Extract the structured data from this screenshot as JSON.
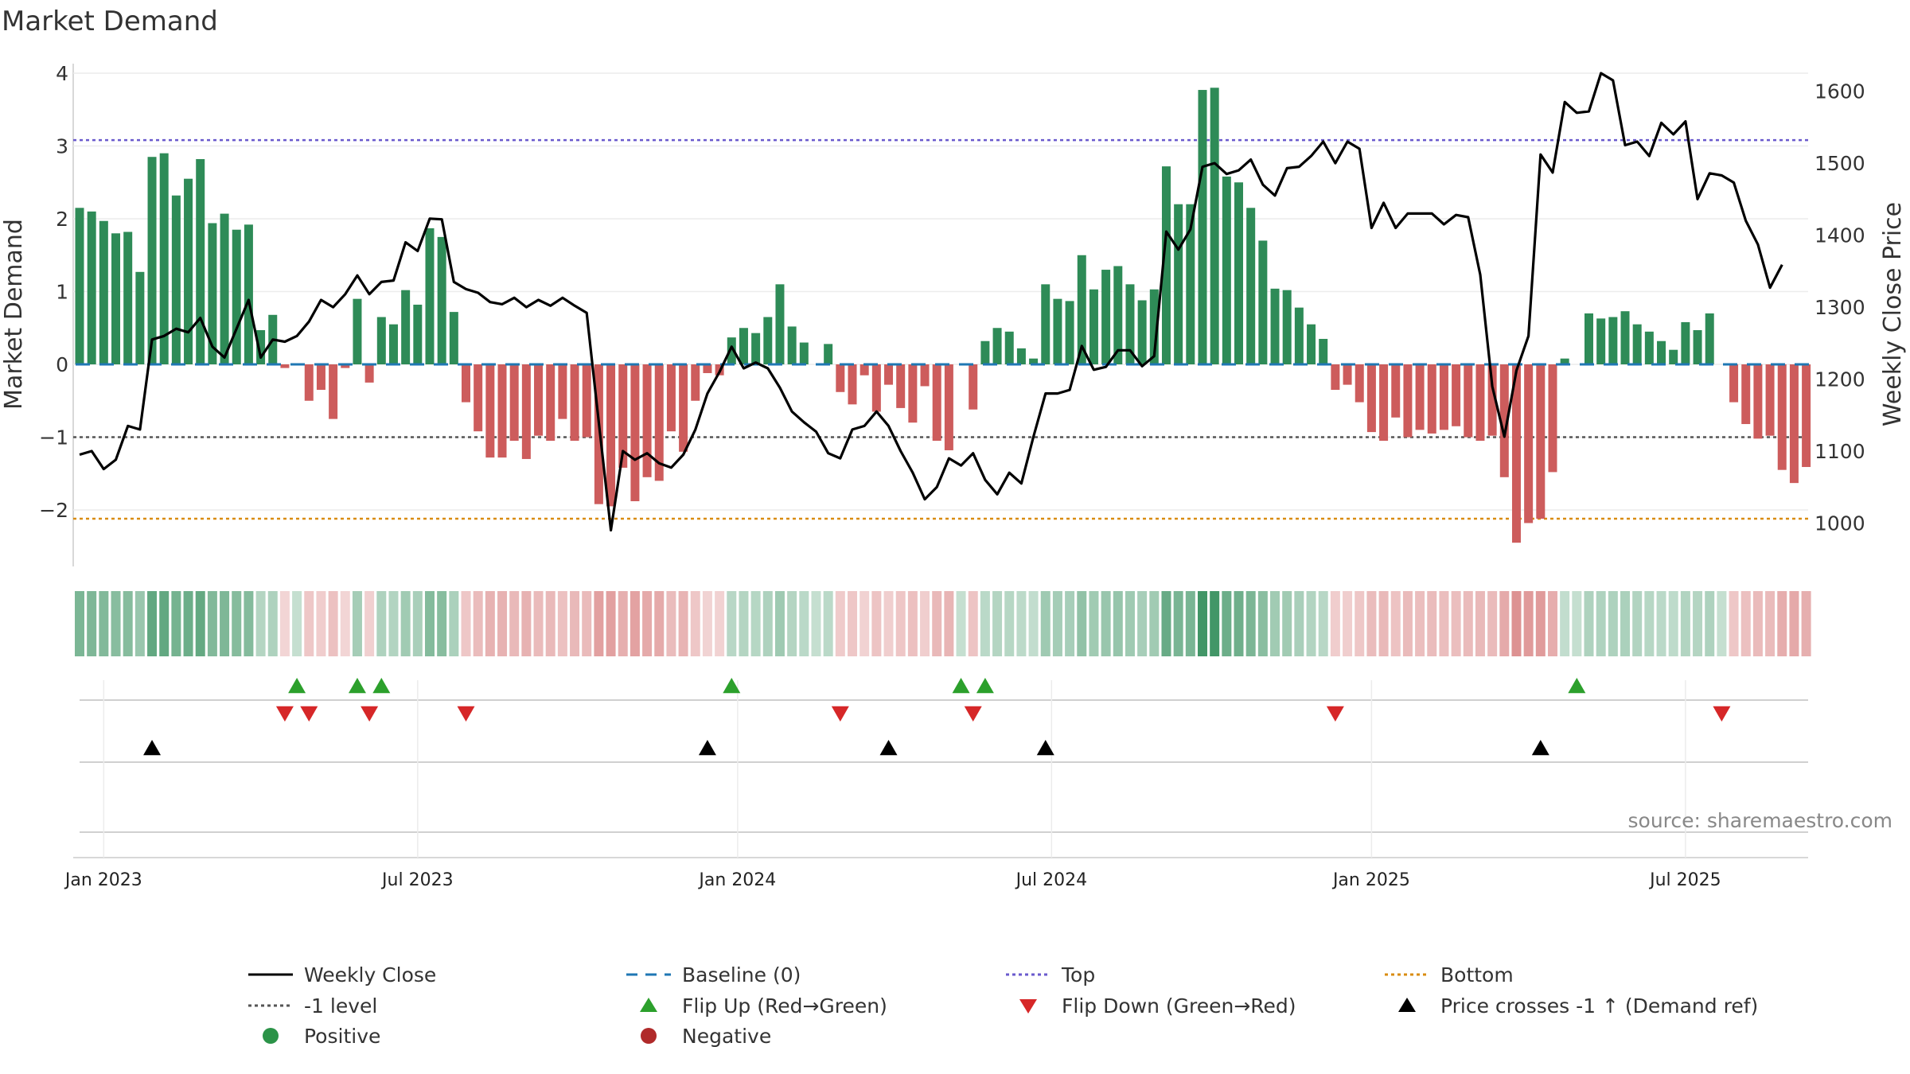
{
  "chart_data": {
    "type": "bar+line",
    "title": "Market Demand",
    "ylabel_left": "Market Demand",
    "ylabel_right": "Weekly Close Price",
    "ylim_left": [
      -2.7,
      4.2
    ],
    "ylim_right": [
      925,
      1642
    ],
    "left_ticks": [
      4,
      3,
      2,
      1,
      0,
      -1,
      -2
    ],
    "left_tick_labels": [
      "4",
      "3",
      "2",
      "1",
      "0",
      "−1",
      "−2"
    ],
    "right_ticks": [
      1600,
      1500,
      1400,
      1300,
      1200,
      1100,
      1000
    ],
    "right_tick_labels": [
      "1600",
      "1500",
      "1400",
      "1300",
      "1200",
      "1100",
      "1000"
    ],
    "x_ticks": [
      {
        "week": 2,
        "label": "Jan 2023"
      },
      {
        "week": 28,
        "label": "Jul 2023"
      },
      {
        "week": 54.5,
        "label": "Jan 2024"
      },
      {
        "week": 80.5,
        "label": "Jul 2024"
      },
      {
        "week": 107,
        "label": "Jan 2025"
      },
      {
        "week": 133,
        "label": "Jul 2025"
      }
    ],
    "reference_lines": {
      "top": 3.08,
      "bottom": -2.12,
      "minus_one": -1.0,
      "baseline": 0
    },
    "demand": [
      2.15,
      2.1,
      1.97,
      1.8,
      1.82,
      1.27,
      2.85,
      2.9,
      2.32,
      2.55,
      2.82,
      1.94,
      2.07,
      1.85,
      1.92,
      0.47,
      0.68,
      -0.05,
      0.0,
      -0.5,
      -0.35,
      -0.75,
      -0.05,
      0.9,
      -0.25,
      0.65,
      0.55,
      1.02,
      0.82,
      1.87,
      1.75,
      0.72,
      -0.52,
      -0.92,
      -1.28,
      -1.28,
      -1.05,
      -1.3,
      -0.98,
      -1.05,
      -0.75,
      -1.05,
      -1.0,
      -1.92,
      -1.95,
      -1.42,
      -1.88,
      -1.55,
      -1.6,
      -0.92,
      -1.2,
      -0.5,
      -0.12,
      -0.15,
      0.37,
      0.5,
      0.43,
      0.65,
      1.1,
      0.52,
      0.3,
      0.0,
      0.28,
      -0.38,
      -0.55,
      -0.15,
      -0.65,
      -0.28,
      -0.6,
      -0.8,
      -0.3,
      -1.05,
      -1.18,
      0.0,
      -0.62,
      0.32,
      0.5,
      0.45,
      0.22,
      0.08,
      1.1,
      0.9,
      0.87,
      1.5,
      1.03,
      1.3,
      1.35,
      1.1,
      0.88,
      1.03,
      2.72,
      2.2,
      2.2,
      3.77,
      3.8,
      2.58,
      2.5,
      2.15,
      1.7,
      1.04,
      1.02,
      0.78,
      0.55,
      0.35,
      -0.35,
      -0.28,
      -0.52,
      -0.93,
      -1.05,
      -0.73,
      -1.0,
      -0.9,
      -0.95,
      -0.9,
      -0.85,
      -1.0,
      -1.05,
      -0.98,
      -1.55,
      -2.45,
      -2.18,
      -2.12,
      -1.48,
      0.08,
      0.0,
      0.7,
      0.63,
      0.65,
      0.73,
      0.55,
      0.45,
      0.32,
      0.2,
      0.58,
      0.47,
      0.7,
      0.0,
      -0.52,
      -0.82,
      -1.02,
      -0.98,
      -1.45,
      -1.63,
      -1.41
    ],
    "weekly_close": [
      1095,
      1100,
      1075,
      1088,
      1135,
      1130,
      1255,
      1260,
      1270,
      1265,
      1285,
      1245,
      1230,
      1270,
      1310,
      1230,
      1255,
      1252,
      1260,
      1280,
      1310,
      1300,
      1318,
      1344,
      1318,
      1335,
      1337,
      1390,
      1378,
      1423,
      1422,
      1335,
      1325,
      1320,
      1307,
      1304,
      1313,
      1300,
      1310,
      1302,
      1313,
      1302,
      1292,
      1140,
      990,
      1100,
      1088,
      1097,
      1083,
      1077,
      1095,
      1130,
      1180,
      1210,
      1245,
      1215,
      1223,
      1215,
      1188,
      1155,
      1140,
      1127,
      1097,
      1090,
      1130,
      1135,
      1155,
      1135,
      1100,
      1070,
      1033,
      1050,
      1090,
      1080,
      1097,
      1060,
      1040,
      1070,
      1055,
      1120,
      1180,
      1180,
      1185,
      1246,
      1213,
      1217,
      1240,
      1240,
      1218,
      1232,
      1405,
      1380,
      1408,
      1495,
      1500,
      1485,
      1490,
      1505,
      1470,
      1455,
      1493,
      1495,
      1510,
      1530,
      1500,
      1530,
      1520,
      1410,
      1445,
      1410,
      1430,
      1430,
      1430,
      1415,
      1428,
      1425,
      1345,
      1190,
      1120,
      1212,
      1260,
      1512,
      1487,
      1585,
      1570,
      1572,
      1625,
      1615,
      1525,
      1530,
      1510,
      1556,
      1540,
      1558,
      1450,
      1486,
      1483,
      1473,
      1420,
      1387,
      1327,
      1359
    ],
    "flip_up": [
      18,
      23,
      25,
      54,
      73,
      75,
      124
    ],
    "flip_down": [
      17,
      19,
      24,
      32,
      63,
      74,
      104,
      136
    ],
    "price_cross": [
      6,
      52,
      67,
      80,
      121
    ],
    "legend": [
      {
        "label": "Weekly Close",
        "marker": "line",
        "color": "#000000"
      },
      {
        "label": "Baseline (0)",
        "marker": "dash",
        "color": "#1f77b4"
      },
      {
        "label": "Top",
        "marker": "dot",
        "color": "#6a5acd"
      },
      {
        "label": "Bottom",
        "marker": "dot",
        "color": "#d98c10"
      },
      {
        "label": "-1 level",
        "marker": "dot",
        "color": "#555555"
      },
      {
        "label": "Flip Up (Red→Green)",
        "marker": "tri-up",
        "color": "#2ca02c"
      },
      {
        "label": "Flip Down (Green→Red)",
        "marker": "tri-down",
        "color": "#d62728"
      },
      {
        "label": "Price crosses -1 ↑ (Demand ref)",
        "marker": "tri-up",
        "color": "#000000"
      },
      {
        "label": "Positive",
        "marker": "circle",
        "color": "#2b9348"
      },
      {
        "label": "Negative",
        "marker": "circle",
        "color": "#b02a2a"
      }
    ],
    "source": "source: sharemaestro.com"
  },
  "colors": {
    "positive_bar": "#2e8b57",
    "negative_bar": "#cd5c5c",
    "close_line": "#000000",
    "top_line": "#6a5acd",
    "bottom_line": "#d98c10",
    "minus_one_line": "#555555",
    "baseline": "#1f77b4"
  }
}
